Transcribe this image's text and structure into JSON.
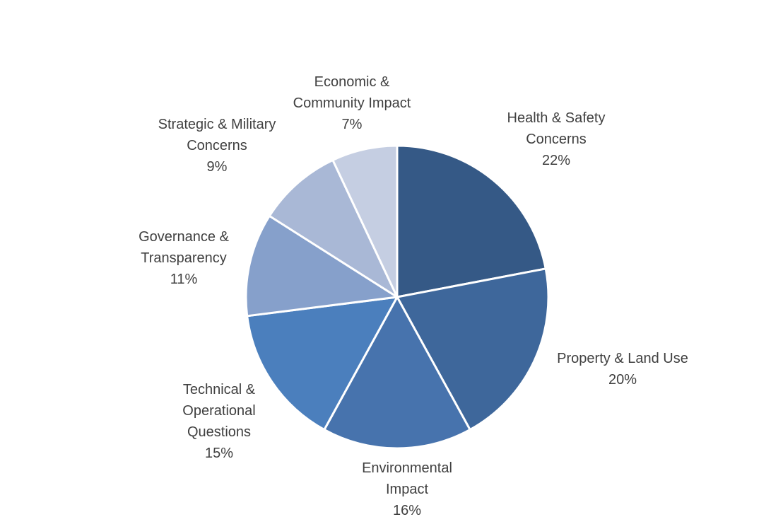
{
  "chart_data": {
    "type": "pie",
    "title": "",
    "slices": [
      {
        "label_lines": [
          "Health & Safety",
          "Concerns"
        ],
        "value": 22,
        "value_text": "22%",
        "color": "#355986"
      },
      {
        "label_lines": [
          "Property & Land Use"
        ],
        "value": 20,
        "value_text": "20%",
        "color": "#3e679b"
      },
      {
        "label_lines": [
          "Environmental",
          "Impact"
        ],
        "value": 16,
        "value_text": "16%",
        "color": "#4773ad"
      },
      {
        "label_lines": [
          "Technical &",
          "Operational",
          "Questions"
        ],
        "value": 15,
        "value_text": "15%",
        "color": "#4b7fbd"
      },
      {
        "label_lines": [
          "Governance &",
          "Transparency"
        ],
        "value": 11,
        "value_text": "11%",
        "color": "#86a0cb"
      },
      {
        "label_lines": [
          "Strategic & Military",
          "Concerns"
        ],
        "value": 9,
        "value_text": "9%",
        "color": "#a9b8d6"
      },
      {
        "label_lines": [
          "Economic &",
          "Community Impact"
        ],
        "value": 7,
        "value_text": "7%",
        "color": "#c5cee2"
      }
    ],
    "start_angle_deg": 0,
    "direction": "clockwise",
    "legend": "none"
  }
}
